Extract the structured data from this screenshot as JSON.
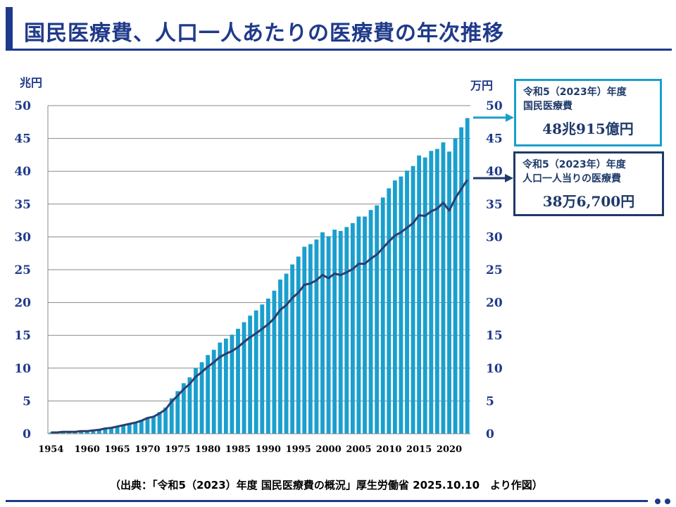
{
  "title": "国民医療費、人口一人あたりの医療費の年次推移",
  "units": {
    "left": "兆円",
    "right": "万円"
  },
  "callouts": {
    "national": {
      "line1": "令和5（2023年）年度",
      "line2": "国民医療費",
      "value": "48兆915億円"
    },
    "per_capita": {
      "line1": "令和5（2023年）年度",
      "line2": "人口一人当りの医療費",
      "value": "38万6,700円"
    }
  },
  "source": "（出典：「令和5（2023）年度 国民医療費の概況」厚生労働省 2025.10.10　より作図）",
  "colors": {
    "bar": "#1a9fce",
    "line": "#2b3f6e",
    "accent": "#1f3a8a"
  },
  "chart_data": {
    "type": "bar+line",
    "title": "国民医療費、人口一人あたりの医療費の年次推移",
    "x": [
      1954,
      1955,
      1956,
      1957,
      1958,
      1959,
      1960,
      1961,
      1962,
      1963,
      1964,
      1965,
      1966,
      1967,
      1968,
      1969,
      1970,
      1971,
      1972,
      1973,
      1974,
      1975,
      1976,
      1977,
      1978,
      1979,
      1980,
      1981,
      1982,
      1983,
      1984,
      1985,
      1986,
      1987,
      1988,
      1989,
      1990,
      1991,
      1992,
      1993,
      1994,
      1995,
      1996,
      1997,
      1998,
      1999,
      2000,
      2001,
      2002,
      2003,
      2004,
      2005,
      2006,
      2007,
      2008,
      2009,
      2010,
      2011,
      2012,
      2013,
      2014,
      2015,
      2016,
      2017,
      2018,
      2019,
      2020,
      2021,
      2022,
      2023
    ],
    "x_tick_labels": [
      "1954",
      "1960",
      "1965",
      "1970",
      "1975",
      "1980",
      "1985",
      "1990",
      "1995",
      "2000",
      "2005",
      "2010",
      "2015",
      "2020"
    ],
    "x_tick_years": [
      1954,
      1960,
      1965,
      1970,
      1975,
      1980,
      1985,
      1990,
      1995,
      2000,
      2005,
      2010,
      2015,
      2020
    ],
    "series": [
      {
        "name": "国民医療費（兆円）",
        "type": "bar",
        "axis": "left",
        "values": [
          0.2,
          0.2,
          0.3,
          0.3,
          0.4,
          0.4,
          0.4,
          0.5,
          0.6,
          0.8,
          0.9,
          1.1,
          1.3,
          1.5,
          1.8,
          2.1,
          2.5,
          2.7,
          3.3,
          4.0,
          5.4,
          6.5,
          7.7,
          8.6,
          10.0,
          10.9,
          12.0,
          12.8,
          13.9,
          14.5,
          15.1,
          16.0,
          17.0,
          18.0,
          18.8,
          19.7,
          20.6,
          21.8,
          23.5,
          24.4,
          25.8,
          27.0,
          28.5,
          28.9,
          29.6,
          30.7,
          30.1,
          31.1,
          30.9,
          31.5,
          32.1,
          33.1,
          33.1,
          34.1,
          34.8,
          36.0,
          37.4,
          38.6,
          39.2,
          40.1,
          40.8,
          42.4,
          42.1,
          43.1,
          43.4,
          44.4,
          43.0,
          45.0,
          46.7,
          48.1
        ]
      },
      {
        "name": "人口一人当り医療費（万円）",
        "type": "line",
        "axis": "right",
        "values": [
          0.2,
          0.2,
          0.3,
          0.3,
          0.3,
          0.4,
          0.4,
          0.5,
          0.6,
          0.8,
          0.9,
          1.1,
          1.3,
          1.5,
          1.7,
          2.0,
          2.4,
          2.6,
          3.1,
          3.7,
          4.9,
          5.8,
          6.8,
          7.6,
          8.7,
          9.4,
          10.2,
          10.9,
          11.7,
          12.2,
          12.6,
          13.2,
          14.0,
          14.7,
          15.3,
          16.0,
          16.7,
          17.6,
          18.9,
          19.6,
          20.7,
          21.5,
          22.7,
          22.9,
          23.4,
          24.2,
          23.7,
          24.4,
          24.2,
          24.6,
          25.1,
          25.9,
          25.9,
          26.7,
          27.3,
          28.3,
          29.3,
          30.2,
          30.7,
          31.4,
          32.1,
          33.3,
          33.2,
          33.9,
          34.3,
          35.2,
          34.0,
          35.9,
          37.3,
          38.7
        ]
      }
    ],
    "ylabel_left": "兆円",
    "ylabel_right": "万円",
    "ylim": [
      0,
      50
    ],
    "y_ticks": [
      0,
      5,
      10,
      15,
      20,
      25,
      30,
      35,
      40,
      45,
      50
    ],
    "grid": true
  }
}
